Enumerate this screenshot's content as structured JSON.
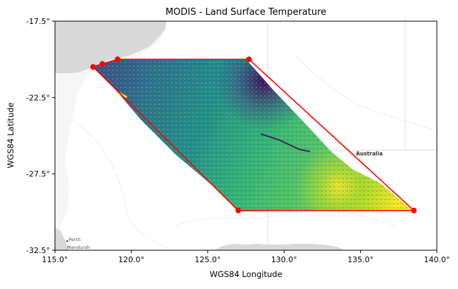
{
  "chart_data": {
    "type": "map",
    "title": "MODIS - Land Surface Temperature",
    "xlabel": "WGS84 Longitude",
    "ylabel": "WGS84 Latitude",
    "xlim": [
      115.0,
      140.0
    ],
    "ylim": [
      -32.5,
      -17.5
    ],
    "x_ticks": [
      115.0,
      120.0,
      125.0,
      130.0,
      135.0,
      140.0
    ],
    "x_tick_labels": [
      "115.0°",
      "120.0°",
      "125.0°",
      "130.0°",
      "135.0°",
      "140.0°"
    ],
    "y_ticks": [
      -17.5,
      -22.5,
      -27.5,
      -32.5
    ],
    "y_tick_labels": [
      "-17.5°",
      "-22.5°",
      "-27.5°",
      "-32.5°"
    ],
    "place_labels": [
      {
        "text": "Australia",
        "lon": 134.7,
        "lat": -26.3
      },
      {
        "text": "Perth",
        "lon": 115.8,
        "lat": -31.9
      },
      {
        "text": "Mandurah",
        "lon": 115.7,
        "lat": -32.4
      }
    ],
    "footprint_polygon": {
      "color": "#ff0000",
      "vertices": [
        {
          "lon": 117.5,
          "lat": -20.5
        },
        {
          "lon": 118.1,
          "lat": -20.3
        },
        {
          "lon": 119.1,
          "lat": -20.0
        },
        {
          "lon": 127.7,
          "lat": -20.0
        },
        {
          "lon": 138.5,
          "lat": -29.9
        },
        {
          "lon": 127.0,
          "lat": -29.9
        }
      ]
    },
    "colormap": "viridis",
    "colors": {
      "land": "#dcdcdc",
      "ocean": "#f6f6f6",
      "border": "#d8d8d8",
      "viridis_dark": "#440154",
      "viridis_mid": "#21918c",
      "viridis_light": "#fde725"
    }
  }
}
